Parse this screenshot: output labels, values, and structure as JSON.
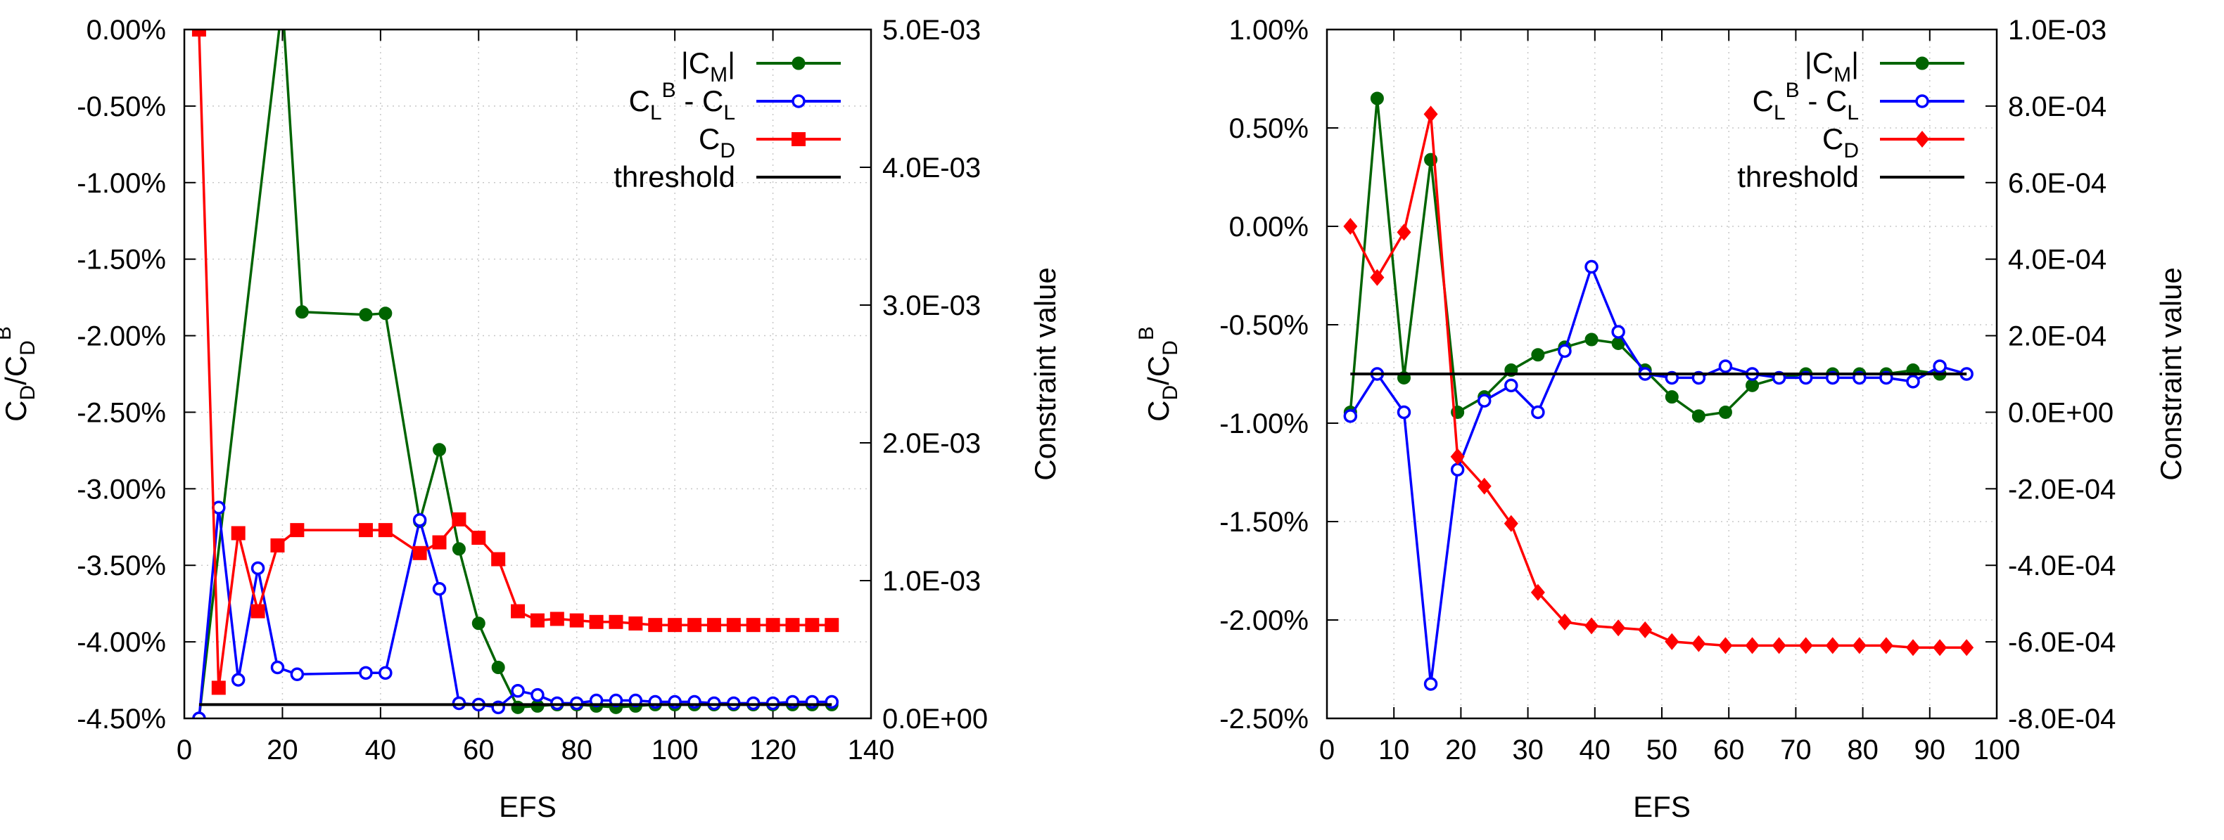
{
  "colors": {
    "cm": "#006400",
    "cl": "#0000ff",
    "cd": "#ff0000",
    "threshold": "#000000",
    "grid": "#c8c8c8"
  },
  "chart_data": [
    {
      "type": "line",
      "xlabel": "EFS",
      "ylabel": {
        "base": "C",
        "sub": "D",
        "slash": "/C",
        "sub2": "D",
        "sup": "B"
      },
      "y2label": "Constraint value",
      "xlim": [
        0,
        140
      ],
      "ylim": [
        -4.5,
        0
      ],
      "y2lim": [
        0,
        0.005
      ],
      "xticks": [
        "0",
        "20",
        "40",
        "60",
        "80",
        "100",
        "120",
        "140"
      ],
      "yticks": [
        "0.00%",
        "-0.50%",
        "-1.00%",
        "-1.50%",
        "-2.00%",
        "-2.50%",
        "-3.00%",
        "-3.50%",
        "-4.00%",
        "-4.50%"
      ],
      "y2ticks": [
        "5.0E-03",
        "4.0E-03",
        "3.0E-03",
        "2.0E-03",
        "1.0E-03",
        "0.0E+00"
      ],
      "grid": true,
      "legend_position": "top-right",
      "series": [
        {
          "name": "|CM|",
          "label_main": "|C",
          "label_sub": "M",
          "label_tail": "|",
          "axis": "y2",
          "color_key": "cm",
          "marker": "circle-filled",
          "x": [
            3,
            20,
            24,
            37,
            41,
            48,
            52,
            56,
            60,
            64,
            68,
            72,
            76,
            80,
            84,
            88,
            92,
            96,
            100,
            104,
            108,
            112,
            116,
            120,
            124,
            128,
            132
          ],
          "y": [
            0.0,
            0.0052,
            0.00295,
            0.00293,
            0.00294,
            0.00143,
            0.00195,
            0.00123,
            0.00069,
            0.00037,
            8e-05,
            9e-05,
            0.0001,
            0.0001,
            9e-05,
            8e-05,
            9e-05,
            0.0001,
            0.0001,
            0.0001,
            0.0001,
            0.0001,
            0.0001,
            0.0001,
            0.0001,
            0.0001,
            0.0001
          ]
        },
        {
          "name": "CL^B - CL",
          "label_main": "C",
          "label_sub": "L",
          "label_sup": "B",
          "label_tail": " - C",
          "label_sub2": "L",
          "axis": "y2",
          "color_key": "cl",
          "marker": "circle-open",
          "x": [
            3,
            7,
            11,
            15,
            19,
            23,
            37,
            41,
            48,
            52,
            56,
            60,
            64,
            68,
            72,
            76,
            80,
            84,
            88,
            92,
            96,
            100,
            104,
            108,
            112,
            116,
            120,
            124,
            128,
            132
          ],
          "y": [
            0.0,
            0.00153,
            0.00028,
            0.00109,
            0.00037,
            0.00032,
            0.00033,
            0.00033,
            0.00144,
            0.00094,
            0.00011,
            0.0001,
            8e-05,
            0.0002,
            0.00017,
            0.00011,
            0.00011,
            0.00013,
            0.00013,
            0.00013,
            0.00012,
            0.00012,
            0.00012,
            0.00011,
            0.00011,
            0.00011,
            0.00011,
            0.00012,
            0.00012,
            0.00012
          ]
        },
        {
          "name": "CD",
          "label_main": "C",
          "label_sub": "D",
          "axis": "y",
          "color_key": "cd",
          "marker": "square-filled",
          "x": [
            3,
            7,
            11,
            15,
            19,
            23,
            37,
            41,
            48,
            52,
            56,
            60,
            64,
            68,
            72,
            76,
            80,
            84,
            88,
            92,
            96,
            100,
            104,
            108,
            112,
            116,
            120,
            124,
            128,
            132
          ],
          "y": [
            0.0,
            -4.3,
            -3.29,
            -3.8,
            -3.37,
            -3.27,
            -3.27,
            -3.27,
            -3.42,
            -3.35,
            -3.2,
            -3.32,
            -3.46,
            -3.8,
            -3.86,
            -3.85,
            -3.86,
            -3.87,
            -3.87,
            -3.88,
            -3.89,
            -3.89,
            -3.89,
            -3.89,
            -3.89,
            -3.89,
            -3.89,
            -3.89,
            -3.89,
            -3.89
          ]
        },
        {
          "name": "threshold",
          "label_main": "threshold",
          "axis": "y2",
          "color_key": "threshold",
          "marker": "none",
          "x": [
            3,
            132
          ],
          "y": [
            0.0001,
            0.0001
          ]
        }
      ]
    },
    {
      "type": "line",
      "xlabel": "EFS",
      "ylabel": {
        "base": "C",
        "sub": "D",
        "slash": "/C",
        "sub2": "D",
        "sup": "B"
      },
      "y2label": "Constraint value",
      "xlim": [
        0,
        100
      ],
      "ylim": [
        -2.5,
        1.0
      ],
      "y2lim": [
        -0.0008,
        0.001
      ],
      "xticks": [
        "0",
        "10",
        "20",
        "30",
        "40",
        "50",
        "60",
        "70",
        "80",
        "90",
        "100"
      ],
      "yticks": [
        "1.00%",
        "0.50%",
        "0.00%",
        "-0.50%",
        "-1.00%",
        "-1.50%",
        "-2.00%",
        "-2.50%"
      ],
      "y2ticks": [
        "1.0E-03",
        "8.0E-04",
        "6.0E-04",
        "4.0E-04",
        "2.0E-04",
        "0.0E+00",
        "-2.0E-04",
        "-4.0E-04",
        "-6.0E-04",
        "-8.0E-04"
      ],
      "grid": true,
      "legend_position": "top-right",
      "series": [
        {
          "name": "|CM|",
          "label_main": "|C",
          "label_sub": "M",
          "label_tail": "|",
          "axis": "y2",
          "color_key": "cm",
          "marker": "circle-filled",
          "x": [
            3.5,
            7.5,
            11.5,
            15.5,
            19.5,
            23.5,
            27.5,
            31.5,
            35.5,
            39.5,
            43.5,
            47.5,
            51.5,
            55.5,
            59.5,
            63.5,
            67.5,
            71.5,
            75.5,
            79.5,
            83.5,
            87.5,
            91.5,
            95.5
          ],
          "y": [
            0.0,
            0.00082,
            9e-05,
            0.00066,
            0.0,
            4e-05,
            0.00011,
            0.00015,
            0.00017,
            0.00019,
            0.00018,
            0.00011,
            4e-05,
            -1e-05,
            0.0,
            7e-05,
            9e-05,
            0.0001,
            0.0001,
            0.0001,
            0.0001,
            0.00011,
            0.0001,
            0.0001
          ]
        },
        {
          "name": "CL^B - CL",
          "label_main": "C",
          "label_sub": "L",
          "label_sup": "B",
          "label_tail": " - C",
          "label_sub2": "L",
          "axis": "y2",
          "color_key": "cl",
          "marker": "circle-open",
          "x": [
            3.5,
            7.5,
            11.5,
            15.5,
            19.5,
            23.5,
            27.5,
            31.5,
            35.5,
            39.5,
            43.5,
            47.5,
            51.5,
            55.5,
            59.5,
            63.5,
            67.5,
            71.5,
            75.5,
            79.5,
            83.5,
            87.5,
            91.5,
            95.5
          ],
          "y": [
            -1e-05,
            0.0001,
            0.0,
            -0.00071,
            -0.00015,
            3e-05,
            7e-05,
            0.0,
            0.00016,
            0.00038,
            0.00021,
            0.0001,
            9e-05,
            9e-05,
            0.00012,
            0.0001,
            9e-05,
            9e-05,
            9e-05,
            9e-05,
            9e-05,
            8e-05,
            0.00012,
            0.0001
          ]
        },
        {
          "name": "CD",
          "label_main": "C",
          "label_sub": "D",
          "axis": "y",
          "color_key": "cd",
          "marker": "diamond-filled",
          "x": [
            3.5,
            7.5,
            11.5,
            15.5,
            19.5,
            23.5,
            27.5,
            31.5,
            35.5,
            39.5,
            43.5,
            47.5,
            51.5,
            55.5,
            59.5,
            63.5,
            67.5,
            71.5,
            75.5,
            79.5,
            83.5,
            87.5,
            91.5,
            95.5
          ],
          "y": [
            0.0,
            -0.26,
            -0.03,
            0.57,
            -1.17,
            -1.32,
            -1.51,
            -1.86,
            -2.01,
            -2.03,
            -2.04,
            -2.05,
            -2.11,
            -2.12,
            -2.13,
            -2.13,
            -2.13,
            -2.13,
            -2.13,
            -2.13,
            -2.13,
            -2.14,
            -2.14,
            -2.14
          ]
        },
        {
          "name": "threshold",
          "label_main": "threshold",
          "axis": "y2",
          "color_key": "threshold",
          "marker": "none",
          "x": [
            3.5,
            95.5
          ],
          "y": [
            0.0001,
            0.0001
          ]
        }
      ]
    }
  ]
}
